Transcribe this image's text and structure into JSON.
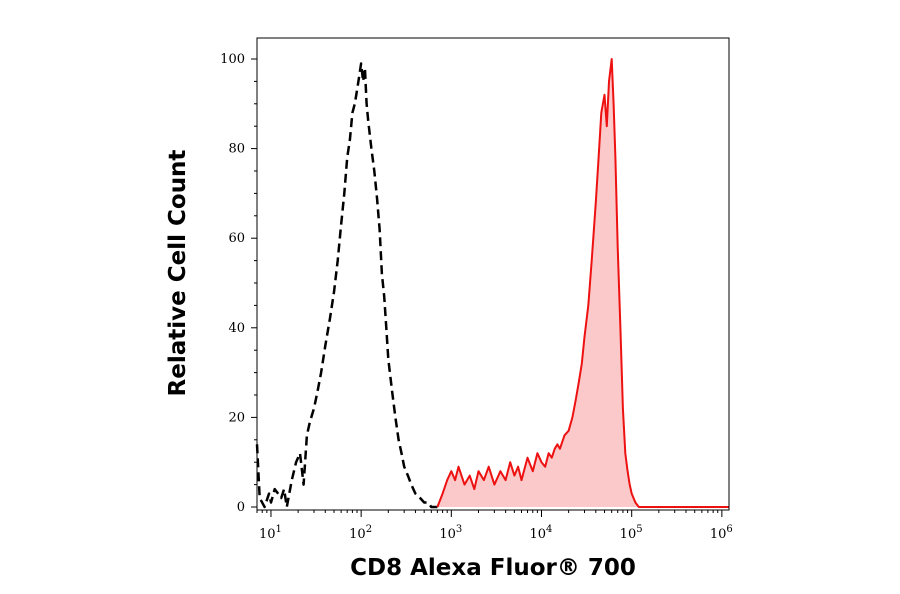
{
  "chart_data": {
    "type": "area",
    "xlabel": "CD8 Alexa Fluor® 700",
    "ylabel": "Relative Cell Count",
    "x_scale": "log",
    "xlim": [
      7,
      1200000
    ],
    "ylim": [
      0,
      104
    ],
    "x_ticks": [
      {
        "value": 10,
        "base": "10",
        "exp": "1"
      },
      {
        "value": 100,
        "base": "10",
        "exp": "2"
      },
      {
        "value": 1000,
        "base": "10",
        "exp": "3"
      },
      {
        "value": 10000,
        "base": "10",
        "exp": "4"
      },
      {
        "value": 100000,
        "base": "10",
        "exp": "5"
      },
      {
        "value": 1000000,
        "base": "10",
        "exp": "6"
      }
    ],
    "y_ticks": [
      "0",
      "20",
      "40",
      "60",
      "80",
      "100"
    ],
    "grid": false,
    "legend": "none",
    "series": [
      {
        "style": "dashed-line",
        "color": "#000000",
        "x": [
          7,
          7.5,
          8.5,
          9.5,
          10,
          11,
          12,
          13,
          14,
          15,
          17,
          19,
          21,
          23,
          25,
          27,
          30,
          33,
          36,
          40,
          45,
          50,
          55,
          60,
          65,
          70,
          75,
          80,
          85,
          90,
          95,
          100,
          105,
          110,
          115,
          120,
          130,
          140,
          150,
          160,
          170,
          180,
          190,
          200,
          220,
          240,
          260,
          280,
          300,
          330,
          360,
          400,
          450,
          500,
          550,
          600,
          700
        ],
        "y": [
          14,
          2,
          0,
          3,
          1,
          4,
          3,
          2,
          4,
          0,
          6,
          10,
          12,
          5,
          16,
          19,
          22,
          26,
          30,
          36,
          42,
          48,
          55,
          63,
          70,
          78,
          82,
          88,
          90,
          93,
          96,
          99,
          95,
          98,
          90,
          86,
          80,
          75,
          69,
          62,
          52,
          47,
          40,
          33,
          26,
          20,
          15,
          12,
          9,
          7,
          5,
          3,
          2,
          1,
          1,
          0,
          0
        ]
      },
      {
        "style": "filled-area",
        "color": "#ee1111",
        "fill": "#fbc9c9",
        "x": [
          700,
          800,
          900,
          1000,
          1100,
          1200,
          1400,
          1600,
          1800,
          2000,
          2300,
          2600,
          3000,
          3500,
          4000,
          4500,
          5000,
          5500,
          6000,
          7000,
          8000,
          9000,
          10000,
          11000,
          12000,
          13000,
          14000,
          15000,
          16000,
          18000,
          20000,
          22000,
          24000,
          26000,
          28000,
          30000,
          33000,
          36000,
          40000,
          43000,
          46000,
          50000,
          53000,
          56000,
          60000,
          63000,
          66000,
          70000,
          75000,
          80000,
          85000,
          90000,
          95000,
          100000,
          110000,
          120000,
          130000,
          140000,
          200000,
          500000,
          1000000,
          1200000
        ],
        "y": [
          0,
          3,
          6,
          8,
          6,
          9,
          5,
          7,
          4,
          8,
          6,
          9,
          5,
          8,
          6,
          10,
          7,
          9,
          6,
          11,
          8,
          12,
          10,
          9,
          12,
          11,
          13,
          14,
          13,
          16,
          17,
          20,
          24,
          28,
          32,
          38,
          45,
          55,
          68,
          78,
          88,
          92,
          85,
          95,
          100,
          90,
          78,
          58,
          40,
          22,
          12,
          8,
          5,
          3,
          1,
          0,
          0,
          0,
          0,
          0,
          0,
          0
        ]
      }
    ]
  }
}
